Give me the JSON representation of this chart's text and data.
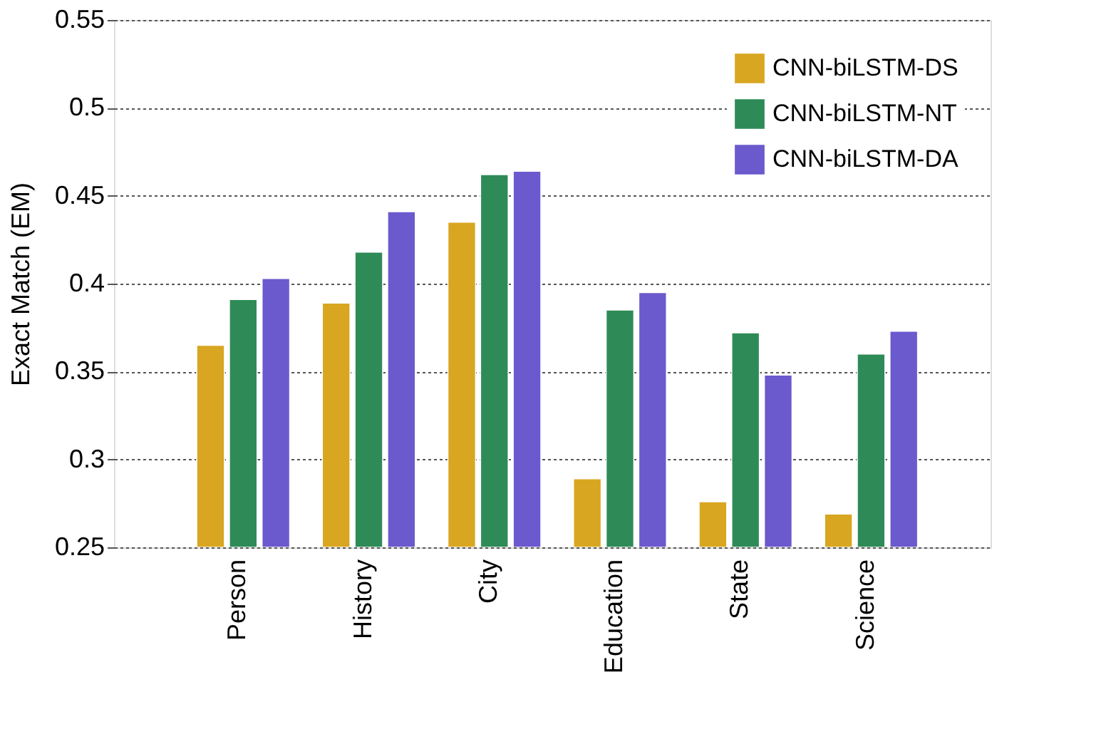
{
  "chart_data": {
    "type": "bar",
    "ylabel": "Exact Match (EM)",
    "categories": [
      "Person",
      "History",
      "City",
      "Education",
      "State",
      "Science"
    ],
    "series": [
      {
        "name": "CNN-biLSTM-DS",
        "color": "#d8a620",
        "values": [
          0.365,
          0.389,
          0.435,
          0.289,
          0.276,
          0.269
        ]
      },
      {
        "name": "CNN-biLSTM-NT",
        "color": "#2e8b57",
        "values": [
          0.391,
          0.418,
          0.462,
          0.385,
          0.372,
          0.36
        ]
      },
      {
        "name": "CNN-biLSTM-DA",
        "color": "#6a5acd",
        "values": [
          0.403,
          0.441,
          0.464,
          0.395,
          0.348,
          0.373
        ]
      }
    ],
    "ylim": [
      0.25,
      0.55
    ],
    "yticks": [
      0.25,
      0.3,
      0.35,
      0.4,
      0.45,
      0.5,
      0.55
    ],
    "grid": "y",
    "legend": "top right"
  }
}
